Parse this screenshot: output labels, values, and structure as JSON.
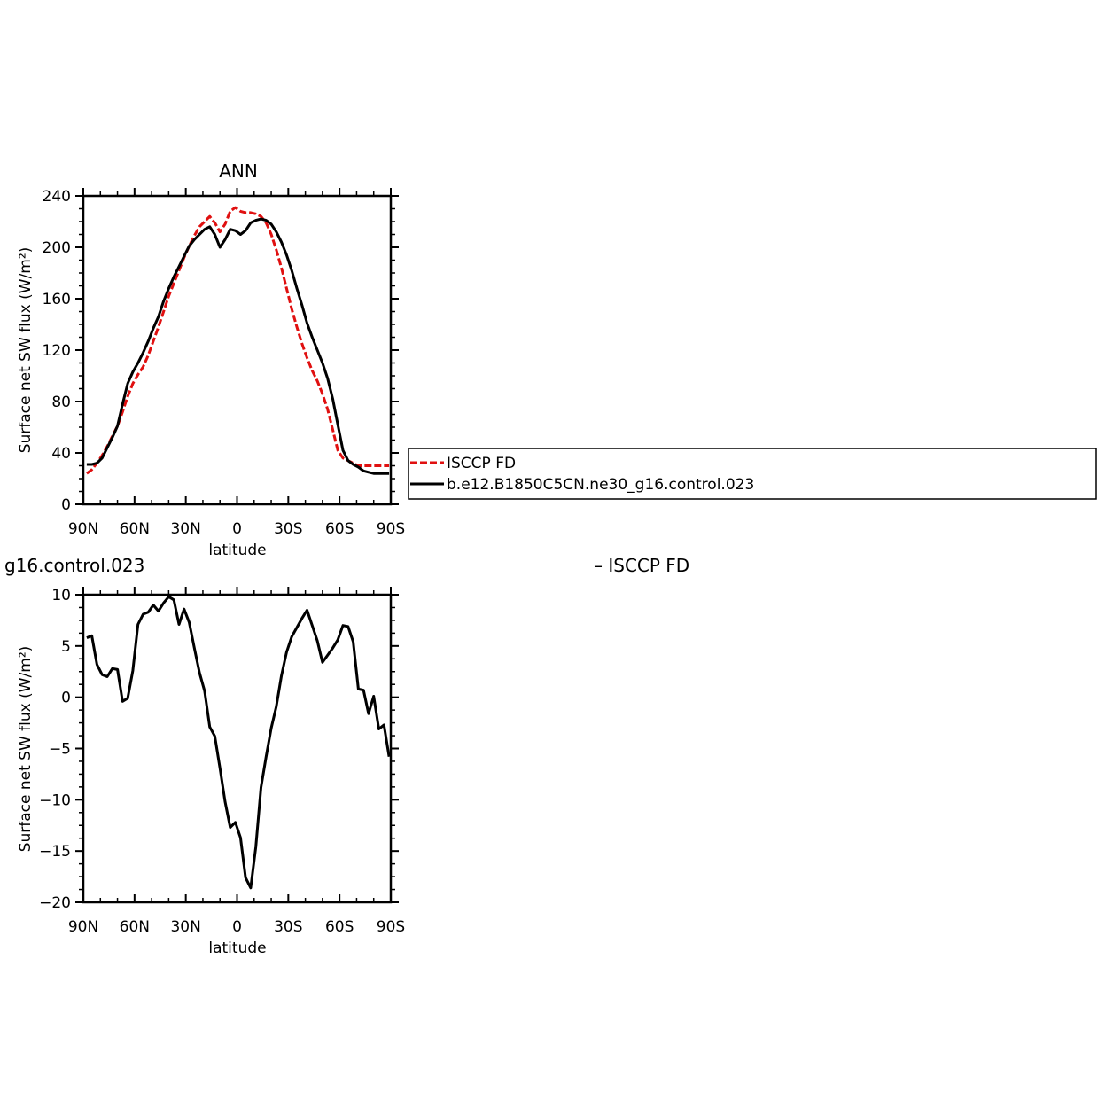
{
  "colors": {
    "obs": "#e01010",
    "model": "#000000"
  },
  "legend": {
    "entries": [
      {
        "label": "ISCCP FD",
        "series": "obs"
      },
      {
        "label": "b.e12.B1850C5CN.ne30_g16.control.023",
        "series": "model"
      }
    ]
  },
  "bottom_panel": {
    "title_left": "g16.control.023",
    "title_right": "– ISCCP FD"
  },
  "chart_data": [
    {
      "type": "line",
      "title": "ANN",
      "xlabel": "latitude",
      "ylabel": "Surface net SW flux (W/m²)",
      "xlim": [
        90,
        -90
      ],
      "ylim": [
        0,
        240
      ],
      "x_ticks": [
        {
          "value": 90,
          "label": "90N"
        },
        {
          "value": 60,
          "label": "60N"
        },
        {
          "value": 30,
          "label": "30N"
        },
        {
          "value": 0,
          "label": "0"
        },
        {
          "value": -30,
          "label": "30S"
        },
        {
          "value": -60,
          "label": "60S"
        },
        {
          "value": -90,
          "label": "90S"
        }
      ],
      "y_ticks": [
        0,
        40,
        80,
        120,
        160,
        200,
        240
      ],
      "grid": false,
      "legend_position": "right",
      "series": [
        {
          "name": "ISCCP FD",
          "key": "obs",
          "style": "dashed",
          "x": [
            88,
            85,
            82,
            79,
            76,
            73,
            70,
            67,
            64,
            61,
            58,
            55,
            52,
            49,
            46,
            43,
            40,
            37,
            34,
            31,
            28,
            25,
            22,
            19,
            16,
            13,
            10,
            7,
            4,
            1,
            -2,
            -5,
            -8,
            -11,
            -14,
            -17,
            -20,
            -23,
            -26,
            -29,
            -32,
            -35,
            -38,
            -41,
            -44,
            -47,
            -50,
            -53,
            -56,
            -59,
            -62,
            -65,
            -68,
            -71,
            -74,
            -77,
            -80,
            -83,
            -86,
            -89
          ],
          "y": [
            24,
            27,
            32,
            38,
            45,
            53,
            61,
            72,
            84,
            94,
            101,
            107,
            116,
            127,
            138,
            150,
            162,
            172,
            182,
            192,
            201,
            209,
            216,
            220,
            224,
            219,
            212,
            218,
            228,
            231,
            228,
            227,
            227,
            226,
            224,
            219,
            210,
            198,
            184,
            168,
            152,
            138,
            125,
            114,
            104,
            96,
            86,
            74,
            58,
            42,
            36,
            34,
            32,
            30,
            30,
            30,
            30,
            30,
            30,
            30
          ]
        },
        {
          "name": "b.e12.B1850C5CN.ne30_g16.control.023",
          "key": "model",
          "style": "solid",
          "x": [
            88,
            85,
            82,
            79,
            76,
            73,
            70,
            67,
            64,
            61,
            58,
            55,
            52,
            49,
            46,
            43,
            40,
            37,
            34,
            31,
            28,
            25,
            22,
            19,
            16,
            13,
            10,
            7,
            4,
            1,
            -2,
            -5,
            -8,
            -11,
            -14,
            -17,
            -20,
            -23,
            -26,
            -29,
            -32,
            -35,
            -38,
            -41,
            -44,
            -47,
            -50,
            -53,
            -56,
            -59,
            -62,
            -65,
            -68,
            -71,
            -74,
            -77,
            -80,
            -83,
            -86,
            -89
          ],
          "y": [
            31,
            31,
            32,
            36,
            44,
            52,
            61,
            78,
            94,
            103,
            110,
            118,
            127,
            137,
            146,
            158,
            168,
            177,
            185,
            193,
            201,
            206,
            210,
            214,
            216,
            210,
            200,
            206,
            214,
            213,
            210,
            213,
            219,
            221,
            222,
            221,
            218,
            212,
            204,
            194,
            182,
            168,
            155,
            141,
            130,
            120,
            110,
            98,
            82,
            62,
            42,
            34,
            31,
            29,
            26,
            25,
            24,
            24,
            24,
            24
          ]
        }
      ]
    },
    {
      "type": "line",
      "xlabel": "latitude",
      "ylabel": "Surface net SW flux (W/m²)",
      "xlim": [
        90,
        -90
      ],
      "ylim": [
        -20,
        10
      ],
      "x_ticks": [
        {
          "value": 90,
          "label": "90N"
        },
        {
          "value": 60,
          "label": "60N"
        },
        {
          "value": 30,
          "label": "30N"
        },
        {
          "value": 0,
          "label": "0"
        },
        {
          "value": -30,
          "label": "30S"
        },
        {
          "value": -60,
          "label": "60S"
        },
        {
          "value": -90,
          "label": "90S"
        }
      ],
      "y_ticks": [
        -20,
        -15,
        -10,
        -5,
        0,
        5,
        10
      ],
      "grid": false,
      "series": [
        {
          "key": "model",
          "style": "solid",
          "x": [
            88,
            85,
            82,
            79,
            76,
            73,
            70,
            67,
            64,
            61,
            58,
            55,
            52,
            49,
            46,
            43,
            40,
            37,
            34,
            31,
            28,
            25,
            22,
            19,
            16,
            13,
            10,
            7,
            4,
            1,
            -2,
            -5,
            -8,
            -11,
            -14,
            -17,
            -20,
            -23,
            -26,
            -29,
            -32,
            -35,
            -38,
            -41,
            -44,
            -47,
            -50,
            -53,
            -56,
            -59,
            -62,
            -65,
            -68,
            -71,
            -74,
            -77,
            -80,
            -83,
            -86,
            -89
          ],
          "y": [
            5.8,
            6.0,
            3.2,
            2.2,
            2.0,
            2.8,
            2.7,
            -0.4,
            -0.1,
            2.6,
            7.1,
            8.1,
            8.3,
            9.0,
            8.4,
            9.2,
            9.8,
            9.5,
            7.1,
            8.6,
            7.3,
            4.8,
            2.4,
            0.6,
            -2.9,
            -3.8,
            -6.9,
            -10.2,
            -12.7,
            -12.2,
            -13.7,
            -17.6,
            -18.6,
            -14.6,
            -8.8,
            -5.8,
            -3.0,
            -0.9,
            2.1,
            4.4,
            5.9,
            6.8,
            7.7,
            8.5,
            7.0,
            5.5,
            3.4,
            4.1,
            4.8,
            5.6,
            7.0,
            6.9,
            5.4,
            0.8,
            0.7,
            -1.6,
            0.1,
            -3.1,
            -2.7,
            -5.8
          ]
        }
      ]
    }
  ]
}
